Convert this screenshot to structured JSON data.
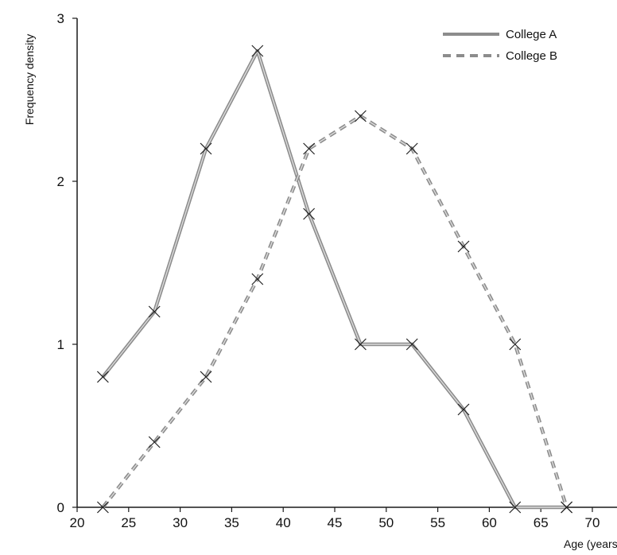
{
  "chart_data": {
    "type": "line",
    "xlabel": "Age (years)",
    "ylabel": "Frequency density",
    "xlim": [
      20,
      70
    ],
    "ylim": [
      0,
      3
    ],
    "x_ticks": [
      "20",
      "25",
      "30",
      "35",
      "40",
      "45",
      "50",
      "55",
      "60",
      "65",
      "70"
    ],
    "y_ticks": [
      "0",
      "1",
      "2",
      "3"
    ],
    "grid": false,
    "legend_position": "top-right",
    "series": [
      {
        "name": "College A",
        "style": "solid",
        "color": "#8c8c8c",
        "x": [
          22.5,
          27.5,
          32.5,
          37.5,
          42.5,
          47.5,
          52.5,
          57.5,
          62.5,
          67.5
        ],
        "y": [
          0.8,
          1.2,
          2.2,
          2.8,
          1.8,
          1.0,
          1.0,
          0.6,
          0.0,
          0.0
        ]
      },
      {
        "name": "College B",
        "style": "dashed",
        "color": "#8c8c8c",
        "x": [
          22.5,
          27.5,
          32.5,
          37.5,
          42.5,
          47.5,
          52.5,
          57.5,
          62.5,
          67.5
        ],
        "y": [
          0.0,
          0.4,
          0.8,
          1.4,
          2.2,
          2.4,
          2.2,
          1.6,
          1.0,
          0.0
        ]
      }
    ]
  }
}
